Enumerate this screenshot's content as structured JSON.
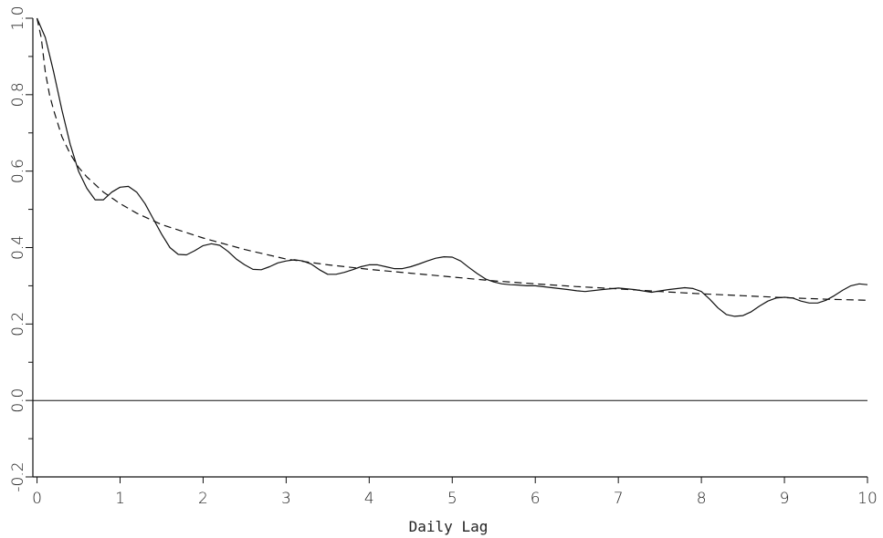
{
  "chart_data": {
    "type": "line",
    "title": "",
    "xlabel": "Daily Lag",
    "ylabel": "",
    "xlim": [
      -0.05,
      10
    ],
    "ylim": [
      -0.2,
      1.0
    ],
    "x_ticks": [
      0,
      1,
      2,
      3,
      4,
      5,
      6,
      7,
      8,
      9,
      10
    ],
    "x_tick_labels": [
      "0",
      "1",
      "2",
      "3",
      "4",
      "5",
      "6",
      "7",
      "8",
      "9",
      "10"
    ],
    "y_ticks": [
      -0.2,
      0.0,
      0.2,
      0.4,
      0.6,
      0.8,
      1.0
    ],
    "y_tick_labels": [
      "-0.2",
      "0.0",
      "0.2",
      "0.4",
      "0.6",
      "0.8",
      "1.0"
    ],
    "grid": false,
    "legend": "none",
    "series": [
      {
        "style": "solid",
        "x": [
          0,
          0.1,
          0.2,
          0.3,
          0.4,
          0.5,
          0.6,
          0.7,
          0.8,
          0.9,
          1.0,
          1.1,
          1.2,
          1.3,
          1.4,
          1.5,
          1.6,
          1.7,
          1.8,
          1.9,
          2.0,
          2.1,
          2.2,
          2.3,
          2.4,
          2.5,
          2.6,
          2.7,
          2.8,
          2.9,
          3.0,
          3.1,
          3.2,
          3.3,
          3.4,
          3.5,
          3.6,
          3.7,
          3.8,
          3.9,
          4.0,
          4.1,
          4.2,
          4.3,
          4.4,
          4.5,
          4.6,
          4.7,
          4.8,
          4.9,
          5.0,
          5.1,
          5.2,
          5.3,
          5.4,
          5.5,
          5.6,
          5.7,
          5.8,
          5.9,
          6.0,
          6.2,
          6.4,
          6.5,
          6.6,
          6.8,
          7.0,
          7.2,
          7.4,
          7.6,
          7.8,
          7.9,
          8.0,
          8.1,
          8.2,
          8.3,
          8.4,
          8.5,
          8.6,
          8.7,
          8.8,
          8.9,
          9.0,
          9.1,
          9.2,
          9.3,
          9.4,
          9.5,
          9.6,
          9.7,
          9.8,
          9.9,
          10.0
        ],
        "y": [
          1.0,
          0.95,
          0.86,
          0.76,
          0.67,
          0.6,
          0.555,
          0.525,
          0.525,
          0.545,
          0.558,
          0.56,
          0.545,
          0.515,
          0.475,
          0.435,
          0.4,
          0.382,
          0.381,
          0.392,
          0.405,
          0.41,
          0.406,
          0.39,
          0.37,
          0.355,
          0.343,
          0.342,
          0.35,
          0.36,
          0.365,
          0.368,
          0.365,
          0.357,
          0.342,
          0.33,
          0.33,
          0.335,
          0.342,
          0.35,
          0.355,
          0.355,
          0.35,
          0.345,
          0.345,
          0.35,
          0.357,
          0.365,
          0.372,
          0.376,
          0.375,
          0.365,
          0.348,
          0.332,
          0.318,
          0.31,
          0.305,
          0.303,
          0.302,
          0.3,
          0.3,
          0.295,
          0.29,
          0.287,
          0.285,
          0.29,
          0.294,
          0.29,
          0.283,
          0.29,
          0.295,
          0.293,
          0.285,
          0.265,
          0.242,
          0.225,
          0.22,
          0.222,
          0.232,
          0.247,
          0.26,
          0.268,
          0.27,
          0.268,
          0.26,
          0.255,
          0.255,
          0.262,
          0.274,
          0.288,
          0.3,
          0.305,
          0.303
        ]
      },
      {
        "style": "dashed",
        "x": [
          0,
          0.05,
          0.1,
          0.15,
          0.2,
          0.3,
          0.4,
          0.5,
          0.6,
          0.8,
          1.0,
          1.2,
          1.5,
          2.0,
          2.5,
          3.0,
          3.5,
          4.0,
          4.5,
          5.0,
          5.5,
          6.0,
          6.5,
          7.0,
          7.5,
          8.0,
          8.5,
          9.0,
          9.5,
          10.0
        ],
        "y": [
          1.0,
          0.95,
          0.86,
          0.8,
          0.76,
          0.69,
          0.645,
          0.61,
          0.585,
          0.545,
          0.515,
          0.49,
          0.46,
          0.425,
          0.395,
          0.37,
          0.355,
          0.343,
          0.333,
          0.323,
          0.313,
          0.305,
          0.298,
          0.292,
          0.285,
          0.279,
          0.274,
          0.269,
          0.265,
          0.262
        ]
      },
      {
        "style": "solid-reference",
        "x": [
          -0.05,
          10
        ],
        "y": [
          0.0,
          0.0
        ]
      }
    ]
  }
}
